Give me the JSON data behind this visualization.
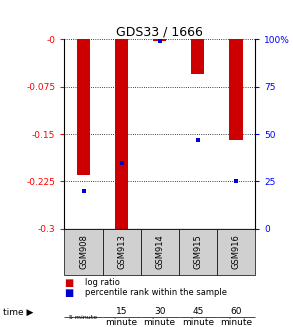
{
  "title": "GDS33 / 1666",
  "samples": [
    "GSM908",
    "GSM913",
    "GSM914",
    "GSM915",
    "GSM916"
  ],
  "time_labels_short": [
    "5 minute",
    "15\nminute",
    "30\nminute",
    "45\nminute",
    "60\nminute"
  ],
  "time_colors": [
    "#e8f5e9",
    "#c8e6c9",
    "#a5d6a7",
    "#81c784",
    "#66bb6a"
  ],
  "log_ratios": [
    -0.215,
    -0.305,
    -0.003,
    -0.055,
    -0.16
  ],
  "percentile_y": [
    -0.24,
    -0.195,
    -0.003,
    -0.16,
    -0.225
  ],
  "ylim_left": [
    -0.3,
    0.0
  ],
  "ylim_right": [
    0,
    100
  ],
  "yticks_left": [
    0.0,
    -0.075,
    -0.15,
    -0.225,
    -0.3
  ],
  "yticks_right": [
    100,
    75,
    50,
    25,
    0
  ],
  "bar_color": "#cc0000",
  "percentile_color": "#0000cc",
  "gsm_bg": "#d0d0d0",
  "legend_items": [
    "log ratio",
    "percentile rank within the sample"
  ],
  "legend_colors": [
    "#cc0000",
    "#0000cc"
  ]
}
